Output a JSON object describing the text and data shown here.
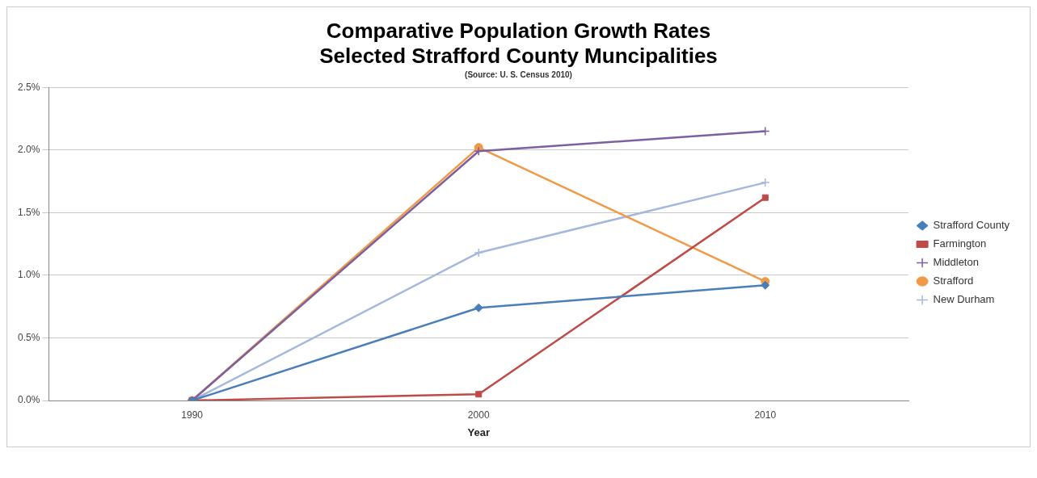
{
  "chart_data": {
    "type": "line",
    "title": "Comparative Population Growth Rates",
    "subtitle": "Selected Strafford County Muncipalities",
    "annotations": [
      "(Source: U. S. Census 2010)"
    ],
    "xlabel": "Year",
    "categories": [
      "1990",
      "2000",
      "2010"
    ],
    "series": [
      {
        "name": "Strafford County",
        "color": "#4a7ebb",
        "marker": "diamond",
        "values": [
          0,
          0.74,
          0.92
        ]
      },
      {
        "name": "Farmington",
        "color": "#be4b48",
        "marker": "square",
        "values": [
          0,
          0.05,
          1.62
        ]
      },
      {
        "name": "Middleton",
        "color": "#7d60a0",
        "marker": "cross",
        "values": [
          0,
          1.99,
          2.15
        ]
      },
      {
        "name": "Strafford",
        "color": "#f09a48",
        "marker": "circle",
        "values": [
          0,
          2.02,
          0.95
        ]
      },
      {
        "name": "New Durham",
        "color": "#a5b8dc",
        "marker": "cross",
        "values": [
          0,
          1.18,
          1.74
        ]
      }
    ],
    "ylim": [
      0,
      2.5
    ],
    "yticks": [
      {
        "value": 0,
        "label": "0.0%"
      },
      {
        "value": 0.5,
        "label": "0.5%"
      },
      {
        "value": 1,
        "label": "1.0%"
      },
      {
        "value": 1.5,
        "label": "1.5%"
      },
      {
        "value": 2,
        "label": "2.0%"
      },
      {
        "value": 2.5,
        "label": "2.5%"
      }
    ],
    "grid": "y",
    "legend": "right",
    "line_style": "solid"
  }
}
